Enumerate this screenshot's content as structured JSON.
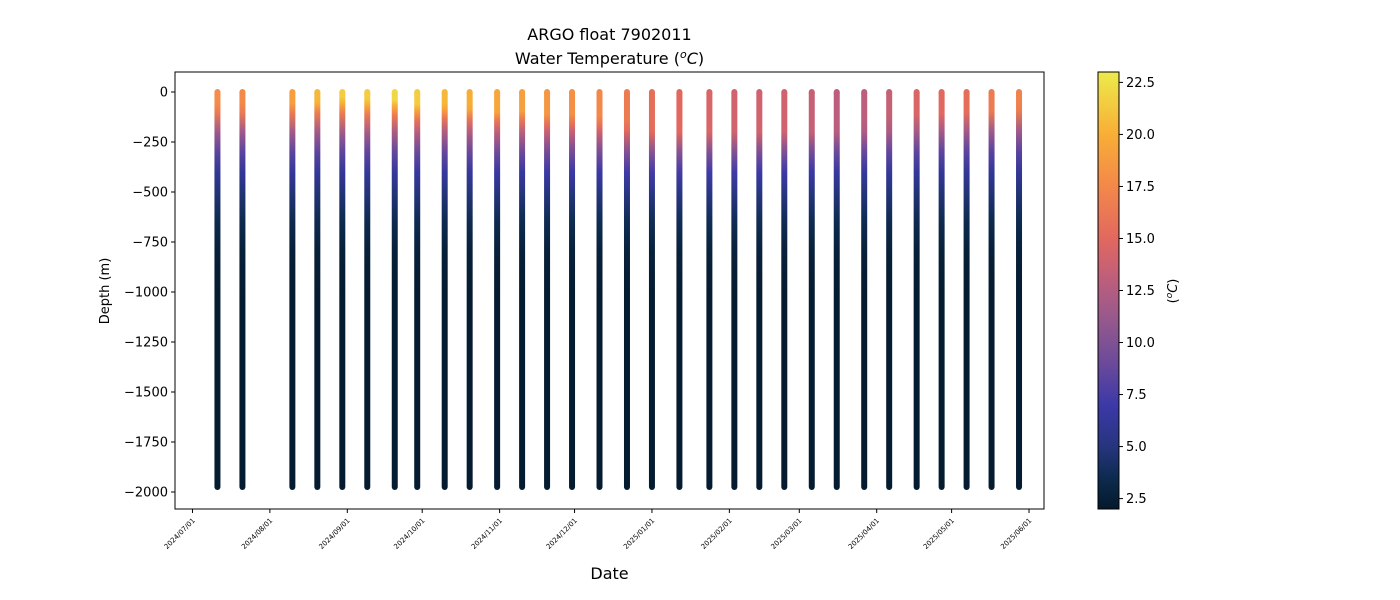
{
  "chart_data": {
    "type": "scatter",
    "title": "ARGO float 7902011",
    "subtitle_prefix": "Water Temperature (",
    "subtitle_unit_sup": "o",
    "subtitle_unit_main": "C",
    "subtitle_suffix": ")",
    "xlabel": "Date",
    "ylabel": "Depth (m)",
    "colorbar_label": {
      "prefix": "(",
      "sup": "o",
      "main": "C",
      "suffix": ")"
    },
    "x_range": [
      "2024-06-24",
      "2025-06-07"
    ],
    "ylim": [
      -2085,
      100
    ],
    "clim": [
      2.0,
      23.0
    ],
    "x_ticks": [
      "2024/07/01",
      "2024/08/01",
      "2024/09/01",
      "2024/10/01",
      "2024/11/01",
      "2024/12/01",
      "2025/01/01",
      "2025/02/01",
      "2025/03/01",
      "2025/04/01",
      "2025/05/01",
      "2025/06/01"
    ],
    "y_ticks": [
      0,
      -250,
      -500,
      -750,
      -1000,
      -1250,
      -1500,
      -1750,
      -2000
    ],
    "y_tick_labels": [
      "0",
      "−250",
      "−500",
      "−750",
      "−1000",
      "−1250",
      "−1500",
      "−1750",
      "−2000"
    ],
    "colorbar_ticks": [
      2.5,
      5.0,
      7.5,
      10.0,
      12.5,
      15.0,
      17.5,
      20.0,
      22.5
    ],
    "colorbar_tick_labels": [
      "2.5",
      "5.0",
      "7.5",
      "10.0",
      "12.5",
      "15.0",
      "17.5",
      "20.0",
      "22.5"
    ],
    "colormap_stops": [
      {
        "value": 2.0,
        "color": "#04192b"
      },
      {
        "value": 3.5,
        "color": "#0d2b4f"
      },
      {
        "value": 5.0,
        "color": "#26357e"
      },
      {
        "value": 7.0,
        "color": "#3c39a8"
      },
      {
        "value": 9.0,
        "color": "#6b4a9a"
      },
      {
        "value": 11.0,
        "color": "#94588e"
      },
      {
        "value": 13.0,
        "color": "#bd5e7c"
      },
      {
        "value": 15.0,
        "color": "#e2685f"
      },
      {
        "value": 17.5,
        "color": "#f3884a"
      },
      {
        "value": 20.0,
        "color": "#f8ae36"
      },
      {
        "value": 23.0,
        "color": "#eeea4c"
      }
    ],
    "profile_depth_range": [
      0,
      -1975
    ],
    "profiles": [
      {
        "date": "2024-07-11",
        "surface_temp": 17.8,
        "mixed_layer_depth": 20,
        "max_depth": -1975
      },
      {
        "date": "2024-07-21",
        "surface_temp": 17.6,
        "mixed_layer_depth": 20,
        "max_depth": -1975
      },
      {
        "date": "2024-08-10",
        "surface_temp": 19.0,
        "mixed_layer_depth": 25,
        "max_depth": -1975
      },
      {
        "date": "2024-08-20",
        "surface_temp": 20.5,
        "mixed_layer_depth": 25,
        "max_depth": -1975
      },
      {
        "date": "2024-08-30",
        "surface_temp": 21.5,
        "mixed_layer_depth": 25,
        "max_depth": -1975
      },
      {
        "date": "2024-09-09",
        "surface_temp": 21.5,
        "mixed_layer_depth": 35,
        "max_depth": -1975
      },
      {
        "date": "2024-09-20",
        "surface_temp": 22.0,
        "mixed_layer_depth": 40,
        "max_depth": -1975
      },
      {
        "date": "2024-09-29",
        "surface_temp": 21.5,
        "mixed_layer_depth": 60,
        "max_depth": -1975
      },
      {
        "date": "2024-10-10",
        "surface_temp": 20.5,
        "mixed_layer_depth": 50,
        "max_depth": -1975
      },
      {
        "date": "2024-10-20",
        "surface_temp": 20.0,
        "mixed_layer_depth": 55,
        "max_depth": -1975
      },
      {
        "date": "2024-10-31",
        "surface_temp": 19.5,
        "mixed_layer_depth": 70,
        "max_depth": -1975
      },
      {
        "date": "2024-11-10",
        "surface_temp": 19.0,
        "mixed_layer_depth": 65,
        "max_depth": -1975
      },
      {
        "date": "2024-11-20",
        "surface_temp": 18.5,
        "mixed_layer_depth": 80,
        "max_depth": -1975
      },
      {
        "date": "2024-11-30",
        "surface_temp": 18.0,
        "mixed_layer_depth": 80,
        "max_depth": -1975
      },
      {
        "date": "2024-12-11",
        "surface_temp": 17.5,
        "mixed_layer_depth": 90,
        "max_depth": -1975
      },
      {
        "date": "2024-12-22",
        "surface_temp": 16.5,
        "mixed_layer_depth": 110,
        "max_depth": -1975
      },
      {
        "date": "2025-01-01",
        "surface_temp": 15.5,
        "mixed_layer_depth": 120,
        "max_depth": -1975
      },
      {
        "date": "2025-01-12",
        "surface_temp": 15.0,
        "mixed_layer_depth": 120,
        "max_depth": -1975
      },
      {
        "date": "2025-01-24",
        "surface_temp": 14.5,
        "mixed_layer_depth": 110,
        "max_depth": -1975
      },
      {
        "date": "2025-02-03",
        "surface_temp": 14.0,
        "mixed_layer_depth": 110,
        "max_depth": -1975
      },
      {
        "date": "2025-02-13",
        "surface_temp": 14.0,
        "mixed_layer_depth": 100,
        "max_depth": -1975
      },
      {
        "date": "2025-02-23",
        "surface_temp": 14.0,
        "mixed_layer_depth": 100,
        "max_depth": -1975
      },
      {
        "date": "2025-03-06",
        "surface_temp": 13.5,
        "mixed_layer_depth": 80,
        "max_depth": -1975
      },
      {
        "date": "2025-03-16",
        "surface_temp": 13.0,
        "mixed_layer_depth": 60,
        "max_depth": -1975
      },
      {
        "date": "2025-03-27",
        "surface_temp": 13.0,
        "mixed_layer_depth": 50,
        "max_depth": -1975
      },
      {
        "date": "2025-04-06",
        "surface_temp": 13.5,
        "mixed_layer_depth": 40,
        "max_depth": -1975
      },
      {
        "date": "2025-04-17",
        "surface_temp": 14.5,
        "mixed_layer_depth": 30,
        "max_depth": -1975
      },
      {
        "date": "2025-04-27",
        "surface_temp": 15.0,
        "mixed_layer_depth": 25,
        "max_depth": -1975
      },
      {
        "date": "2025-05-07",
        "surface_temp": 15.5,
        "mixed_layer_depth": 20,
        "max_depth": -1975
      },
      {
        "date": "2025-05-17",
        "surface_temp": 16.5,
        "mixed_layer_depth": 15,
        "max_depth": -1975
      },
      {
        "date": "2025-05-28",
        "surface_temp": 17.0,
        "mixed_layer_depth": 15,
        "max_depth": -1975
      }
    ],
    "grid": false,
    "colorbar": "right"
  }
}
